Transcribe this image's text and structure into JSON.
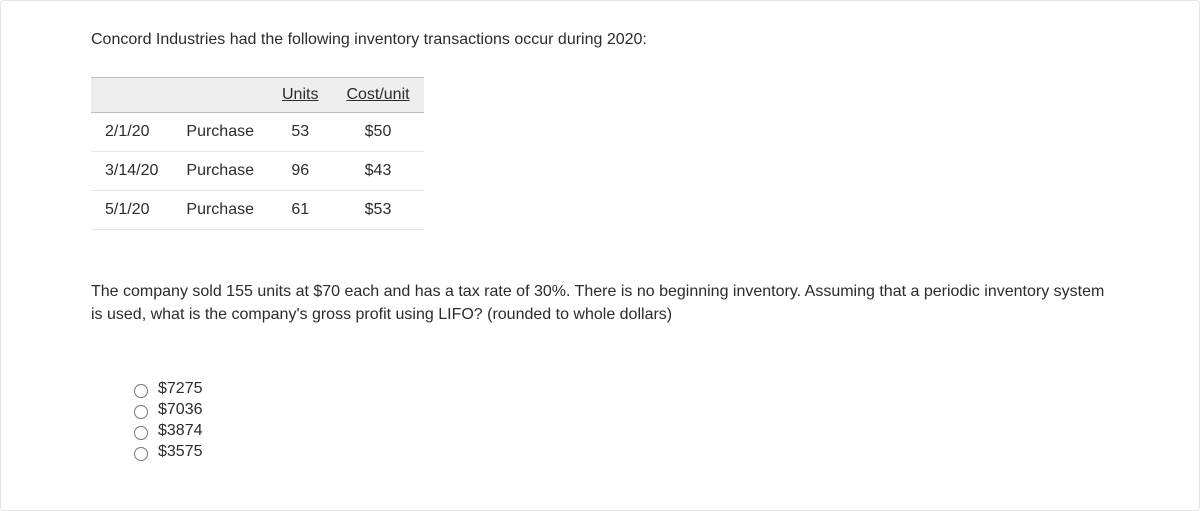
{
  "intro": "Concord Industries had the following inventory transactions occur during 2020:",
  "table": {
    "headers": {
      "units": "Units",
      "cost": "Cost/unit"
    },
    "rows": [
      {
        "date": "2/1/20",
        "type": "Purchase",
        "units": "53",
        "cost": "$50"
      },
      {
        "date": "3/14/20",
        "type": "Purchase",
        "units": "96",
        "cost": "$43"
      },
      {
        "date": "5/1/20",
        "type": "Purchase",
        "units": "61",
        "cost": "$53"
      }
    ]
  },
  "question": "The company sold 155 units at $70 each and has a tax rate of 30%. There is no beginning inventory. Assuming that a periodic inventory system is used, what is the company's gross profit using LIFO? (rounded to whole dollars)",
  "options": [
    {
      "label": "$7275"
    },
    {
      "label": "$7036"
    },
    {
      "label": "$3874"
    },
    {
      "label": "$3575"
    }
  ],
  "colors": {
    "text": "#2b2b2b",
    "header_bg": "#eeeeee",
    "header_border": "#bdbdbd",
    "row_border": "#e6e6e6",
    "page_border": "#e5e5e5"
  }
}
